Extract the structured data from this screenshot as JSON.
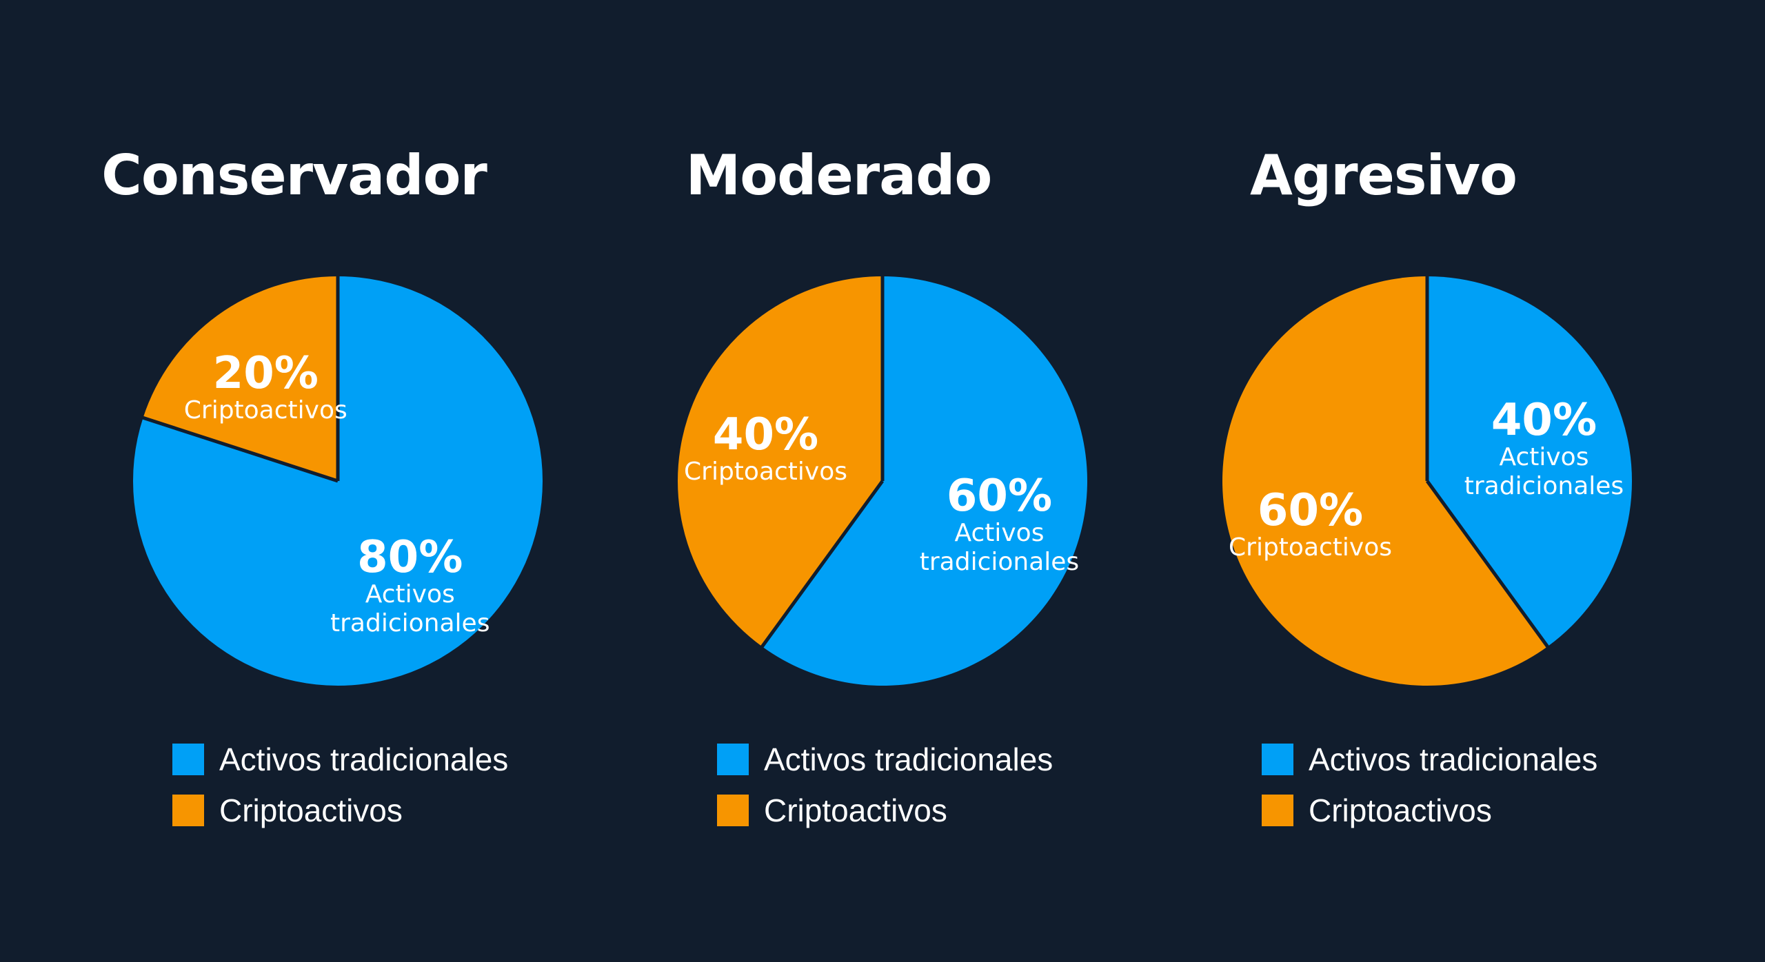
{
  "colors": {
    "background": "#111d2d",
    "traditional": "#00a0f6",
    "crypto": "#f79500",
    "separator": "#111d2d"
  },
  "chart_data": [
    {
      "type": "pie",
      "title": "Conservador",
      "slices": [
        {
          "category": "crypto",
          "value": 20,
          "pct_label": "20%",
          "name_lines": [
            "Criptoactivos"
          ]
        },
        {
          "category": "traditional",
          "value": 80,
          "pct_label": "80%",
          "name_lines": [
            "Activos",
            "tradicionales"
          ]
        }
      ],
      "legend": [
        {
          "category": "traditional",
          "label": "Activos tradicionales"
        },
        {
          "category": "crypto",
          "label": "Criptoactivos"
        }
      ]
    },
    {
      "type": "pie",
      "title": "Moderado",
      "slices": [
        {
          "category": "crypto",
          "value": 40,
          "pct_label": "40%",
          "name_lines": [
            "Criptoactivos"
          ]
        },
        {
          "category": "traditional",
          "value": 60,
          "pct_label": "60%",
          "name_lines": [
            "Activos",
            "tradicionales"
          ]
        }
      ],
      "legend": [
        {
          "category": "traditional",
          "label": "Activos tradicionales"
        },
        {
          "category": "crypto",
          "label": "Criptoactivos"
        }
      ]
    },
    {
      "type": "pie",
      "title": "Agresivo",
      "slices": [
        {
          "category": "crypto",
          "value": 60,
          "pct_label": "60%",
          "name_lines": [
            "Criptoactivos"
          ]
        },
        {
          "category": "traditional",
          "value": 40,
          "pct_label": "40%",
          "name_lines": [
            "Activos",
            "tradicionales"
          ]
        }
      ],
      "legend": [
        {
          "category": "traditional",
          "label": "Activos tradicionales"
        },
        {
          "category": "crypto",
          "label": "Criptoactivos"
        }
      ]
    }
  ]
}
